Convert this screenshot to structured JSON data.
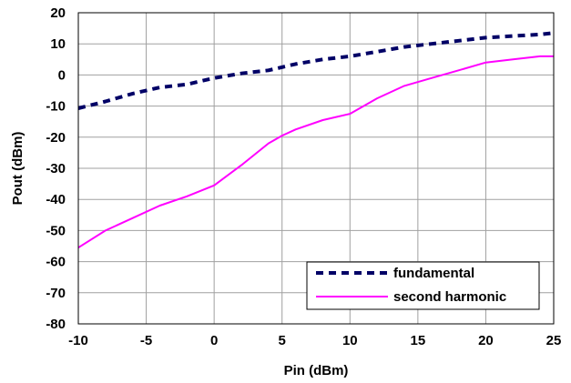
{
  "chart_data": {
    "type": "line",
    "title": "",
    "xlabel": "Pin (dBm)",
    "ylabel": "Pout (dBm)",
    "xlim": [
      -10,
      25
    ],
    "ylim": [
      -80,
      20
    ],
    "x_ticks": [
      -10,
      -5,
      0,
      5,
      10,
      15,
      20,
      25
    ],
    "y_ticks": [
      20,
      10,
      0,
      -10,
      -20,
      -30,
      -40,
      -50,
      -60,
      -70,
      -80
    ],
    "grid": true,
    "legend_position": "bottom-right",
    "series": [
      {
        "name": "fundamental",
        "color": "#000066",
        "style": "dashed",
        "x": [
          -10,
          -8,
          -6,
          -4,
          -2,
          0,
          2,
          4,
          6,
          8,
          10,
          12,
          14,
          16,
          18,
          20,
          22,
          24,
          25
        ],
        "y": [
          -10.7,
          -8.5,
          -6,
          -4,
          -3,
          -1,
          0.5,
          1.5,
          3.5,
          5,
          6,
          7.5,
          9,
          10,
          11,
          12,
          12.5,
          13,
          13.5
        ]
      },
      {
        "name": "second harmonic",
        "color": "#ff00ff",
        "style": "solid",
        "x": [
          -10,
          -8,
          -6,
          -4,
          -2,
          0,
          2,
          4,
          5,
          6,
          8,
          10,
          12,
          14,
          16,
          18,
          20,
          22,
          24,
          25
        ],
        "y": [
          -55.5,
          -50,
          -46,
          -42,
          -39,
          -35.5,
          -29,
          -22,
          -19.5,
          -17.5,
          -14.5,
          -12.5,
          -7.5,
          -3.5,
          -1,
          1.5,
          4,
          5,
          6,
          6
        ]
      }
    ]
  }
}
